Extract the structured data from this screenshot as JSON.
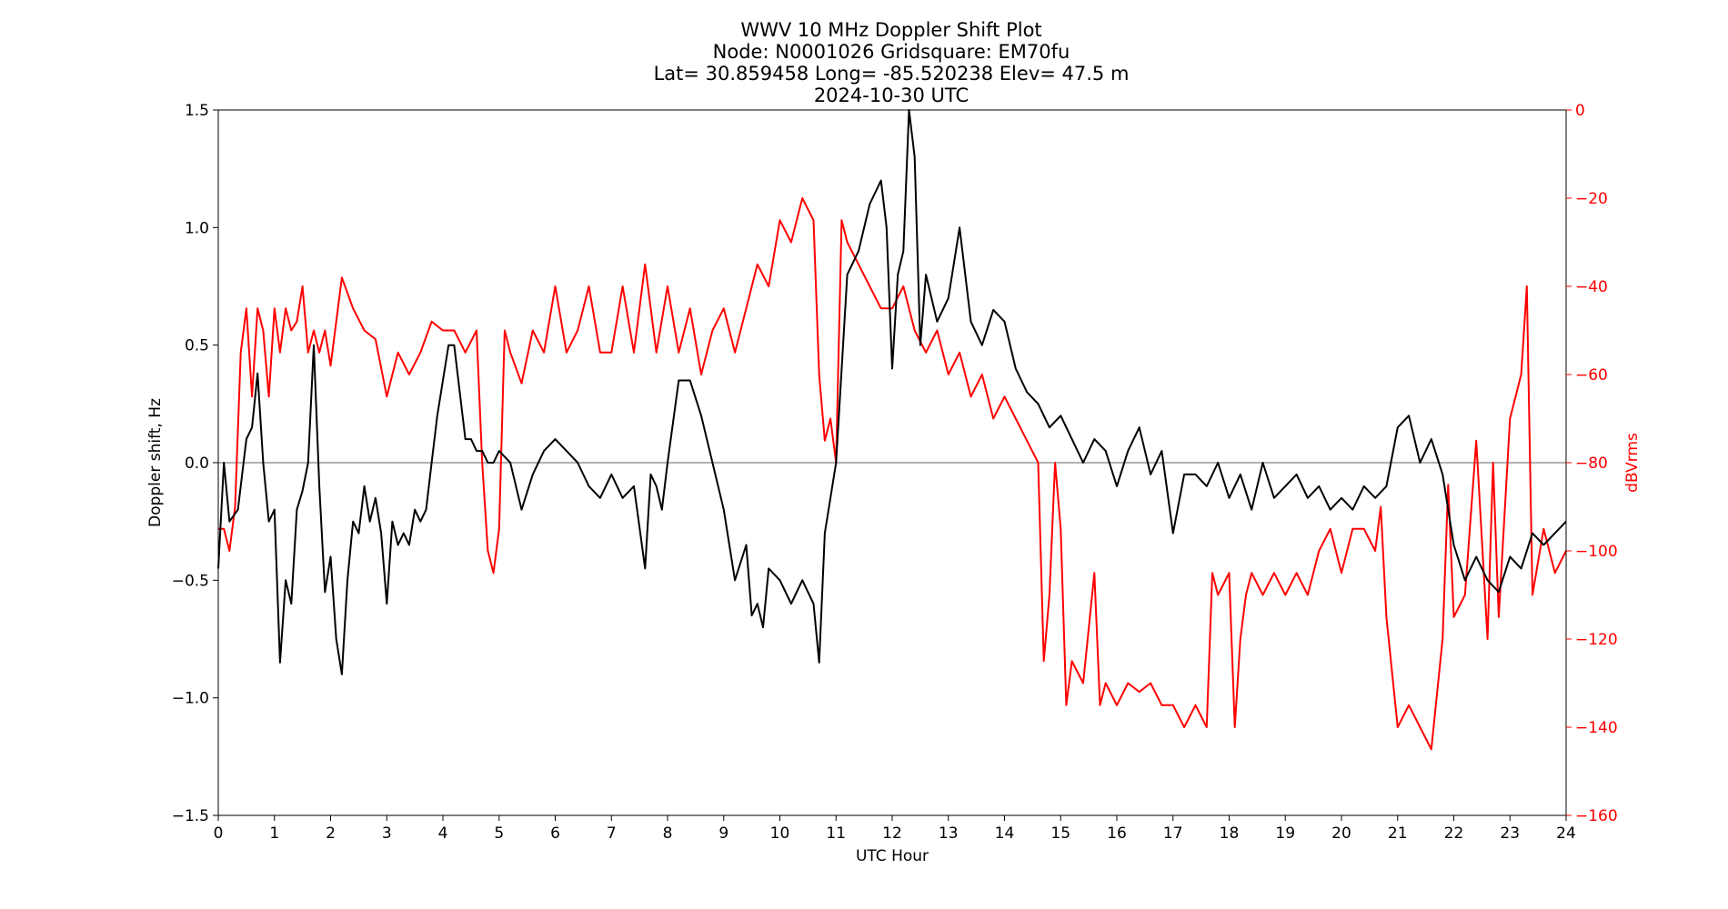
{
  "chart_data": {
    "type": "line",
    "title_lines": [
      "WWV 10 MHz Doppler Shift Plot",
      "Node:  N0001026     Gridsquare:  EM70fu",
      "Lat= 30.859458    Long= -85.520238    Elev= 47.5 m",
      "2024-10-30  UTC"
    ],
    "xlabel": "UTC Hour",
    "ylabel_left": "Doppler shift, Hz",
    "ylabel_right": "dBVrms",
    "xlim": [
      0,
      24
    ],
    "ylim_left": [
      -1.5,
      1.5
    ],
    "ylim_right": [
      -160,
      0
    ],
    "x_ticks": [
      "0",
      "1",
      "2",
      "3",
      "4",
      "5",
      "6",
      "7",
      "8",
      "9",
      "10",
      "11",
      "12",
      "13",
      "14",
      "15",
      "16",
      "17",
      "18",
      "19",
      "20",
      "21",
      "22",
      "23",
      "24"
    ],
    "y_ticks_left": [
      "−1.5",
      "−1.0",
      "−0.5",
      "0.0",
      "0.5",
      "1.0",
      "1.5"
    ],
    "y_ticks_right": [
      "−160",
      "−140",
      "−120",
      "−100",
      "−80",
      "−60",
      "−40",
      "−20",
      "0"
    ],
    "zero_line": 0.0,
    "grid": false,
    "colors": {
      "doppler": "#000000",
      "power": "#ff0000",
      "zero_line": "#808080"
    },
    "series": [
      {
        "axis": "left",
        "x": [
          0,
          0.1,
          0.2,
          0.35,
          0.5,
          0.6,
          0.7,
          0.8,
          0.9,
          1.0,
          1.1,
          1.2,
          1.3,
          1.4,
          1.5,
          1.6,
          1.7,
          1.8,
          1.9,
          2.0,
          2.1,
          2.2,
          2.3,
          2.4,
          2.5,
          2.6,
          2.7,
          2.8,
          2.9,
          3.0,
          3.1,
          3.2,
          3.3,
          3.4,
          3.5,
          3.6,
          3.7,
          3.8,
          3.9,
          4.0,
          4.1,
          4.2,
          4.3,
          4.4,
          4.5,
          4.6,
          4.7,
          4.8,
          4.9,
          5.0,
          5.2,
          5.4,
          5.6,
          5.8,
          6.0,
          6.2,
          6.4,
          6.6,
          6.8,
          7.0,
          7.2,
          7.4,
          7.6,
          7.7,
          7.8,
          7.9,
          8.0,
          8.2,
          8.4,
          8.6,
          8.8,
          9.0,
          9.2,
          9.4,
          9.5,
          9.6,
          9.7,
          9.8,
          10.0,
          10.2,
          10.4,
          10.6,
          10.7,
          10.8,
          11.0,
          11.2,
          11.4,
          11.6,
          11.8,
          11.9,
          12.0,
          12.1,
          12.2,
          12.3,
          12.4,
          12.5,
          12.6,
          12.8,
          13.0,
          13.2,
          13.4,
          13.6,
          13.8,
          14.0,
          14.2,
          14.4,
          14.6,
          14.8,
          15.0,
          15.2,
          15.4,
          15.6,
          15.8,
          16.0,
          16.2,
          16.4,
          16.6,
          16.8,
          17.0,
          17.2,
          17.4,
          17.6,
          17.8,
          18.0,
          18.2,
          18.4,
          18.6,
          18.8,
          19.0,
          19.2,
          19.4,
          19.6,
          19.8,
          20.0,
          20.2,
          20.4,
          20.6,
          20.8,
          21.0,
          21.2,
          21.4,
          21.6,
          21.8,
          22.0,
          22.2,
          22.4,
          22.6,
          22.8,
          23.0,
          23.2,
          23.4,
          23.6,
          23.8,
          24.0
        ],
        "y": [
          -0.45,
          0.0,
          -0.25,
          -0.2,
          0.1,
          0.15,
          0.38,
          0.0,
          -0.25,
          -0.2,
          -0.85,
          -0.5,
          -0.6,
          -0.2,
          -0.12,
          0.0,
          0.5,
          -0.1,
          -0.55,
          -0.4,
          -0.75,
          -0.9,
          -0.5,
          -0.25,
          -0.3,
          -0.1,
          -0.25,
          -0.15,
          -0.3,
          -0.6,
          -0.25,
          -0.35,
          -0.3,
          -0.35,
          -0.2,
          -0.25,
          -0.2,
          0.0,
          0.2,
          0.35,
          0.5,
          0.5,
          0.3,
          0.1,
          0.1,
          0.05,
          0.05,
          0.0,
          0.0,
          0.05,
          0.0,
          -0.2,
          -0.05,
          0.05,
          0.1,
          0.05,
          0.0,
          -0.1,
          -0.15,
          -0.05,
          -0.15,
          -0.1,
          -0.45,
          -0.05,
          -0.1,
          -0.2,
          0.0,
          0.35,
          0.35,
          0.2,
          0.0,
          -0.2,
          -0.5,
          -0.35,
          -0.65,
          -0.6,
          -0.7,
          -0.45,
          -0.5,
          -0.6,
          -0.5,
          -0.6,
          -0.85,
          -0.3,
          0.0,
          0.8,
          0.9,
          1.1,
          1.2,
          1.0,
          0.4,
          0.8,
          0.9,
          1.5,
          1.3,
          0.5,
          0.8,
          0.6,
          0.7,
          1.0,
          0.6,
          0.5,
          0.65,
          0.6,
          0.4,
          0.3,
          0.25,
          0.15,
          0.2,
          0.1,
          0.0,
          0.1,
          0.05,
          -0.1,
          0.05,
          0.15,
          -0.05,
          0.05,
          -0.3,
          -0.05,
          -0.05,
          -0.1,
          0.0,
          -0.15,
          -0.05,
          -0.2,
          0.0,
          -0.15,
          -0.1,
          -0.05,
          -0.15,
          -0.1,
          -0.2,
          -0.15,
          -0.2,
          -0.1,
          -0.15,
          -0.1,
          0.15,
          0.2,
          0.0,
          0.1,
          -0.05,
          -0.35,
          -0.5,
          -0.4,
          -0.5,
          -0.55,
          -0.4,
          -0.45,
          -0.3,
          -0.35,
          -0.3,
          -0.25
        ]
      },
      {
        "axis": "right",
        "x": [
          0,
          0.1,
          0.2,
          0.3,
          0.4,
          0.5,
          0.6,
          0.7,
          0.8,
          0.9,
          1.0,
          1.1,
          1.2,
          1.3,
          1.4,
          1.5,
          1.6,
          1.7,
          1.8,
          1.9,
          2.0,
          2.2,
          2.4,
          2.6,
          2.8,
          3.0,
          3.2,
          3.4,
          3.6,
          3.8,
          4.0,
          4.2,
          4.4,
          4.6,
          4.7,
          4.8,
          4.9,
          5.0,
          5.1,
          5.2,
          5.4,
          5.6,
          5.8,
          6.0,
          6.2,
          6.4,
          6.6,
          6.8,
          7.0,
          7.2,
          7.4,
          7.6,
          7.8,
          8.0,
          8.2,
          8.4,
          8.6,
          8.8,
          9.0,
          9.2,
          9.4,
          9.6,
          9.8,
          10.0,
          10.2,
          10.4,
          10.6,
          10.7,
          10.8,
          10.9,
          11.0,
          11.1,
          11.2,
          11.4,
          11.6,
          11.8,
          12.0,
          12.2,
          12.4,
          12.6,
          12.8,
          13.0,
          13.2,
          13.4,
          13.6,
          13.8,
          14.0,
          14.2,
          14.4,
          14.6,
          14.7,
          14.8,
          14.9,
          15.0,
          15.1,
          15.2,
          15.4,
          15.6,
          15.7,
          15.8,
          16.0,
          16.2,
          16.4,
          16.6,
          16.8,
          17.0,
          17.2,
          17.4,
          17.6,
          17.7,
          17.8,
          18.0,
          18.1,
          18.2,
          18.3,
          18.4,
          18.6,
          18.8,
          19.0,
          19.2,
          19.4,
          19.6,
          19.8,
          20.0,
          20.2,
          20.4,
          20.6,
          20.7,
          20.8,
          21.0,
          21.2,
          21.4,
          21.6,
          21.8,
          21.9,
          22.0,
          22.2,
          22.4,
          22.6,
          22.7,
          22.8,
          23.0,
          23.2,
          23.3,
          23.4,
          23.6,
          23.8,
          24.0
        ],
        "y": [
          -95,
          -95,
          -100,
          -90,
          -55,
          -45,
          -65,
          -45,
          -50,
          -65,
          -45,
          -55,
          -45,
          -50,
          -48,
          -40,
          -55,
          -50,
          -55,
          -50,
          -58,
          -38,
          -45,
          -50,
          -52,
          -65,
          -55,
          -60,
          -55,
          -48,
          -50,
          -50,
          -55,
          -50,
          -80,
          -100,
          -105,
          -95,
          -50,
          -55,
          -62,
          -50,
          -55,
          -40,
          -55,
          -50,
          -40,
          -55,
          -55,
          -40,
          -55,
          -35,
          -55,
          -40,
          -55,
          -45,
          -60,
          -50,
          -45,
          -55,
          -45,
          -35,
          -40,
          -25,
          -30,
          -20,
          -25,
          -60,
          -75,
          -70,
          -80,
          -25,
          -30,
          -35,
          -40,
          -45,
          -45,
          -40,
          -50,
          -55,
          -50,
          -60,
          -55,
          -65,
          -60,
          -70,
          -65,
          -70,
          -75,
          -80,
          -125,
          -110,
          -80,
          -95,
          -135,
          -125,
          -130,
          -105,
          -135,
          -130,
          -135,
          -130,
          -132,
          -130,
          -135,
          -135,
          -140,
          -135,
          -140,
          -105,
          -110,
          -105,
          -140,
          -120,
          -110,
          -105,
          -110,
          -105,
          -110,
          -105,
          -110,
          -100,
          -95,
          -105,
          -95,
          -95,
          -100,
          -90,
          -115,
          -140,
          -135,
          -140,
          -145,
          -120,
          -85,
          -115,
          -110,
          -75,
          -120,
          -80,
          -115,
          -70,
          -60,
          -40,
          -110,
          -95,
          -105,
          -100
        ]
      }
    ]
  }
}
